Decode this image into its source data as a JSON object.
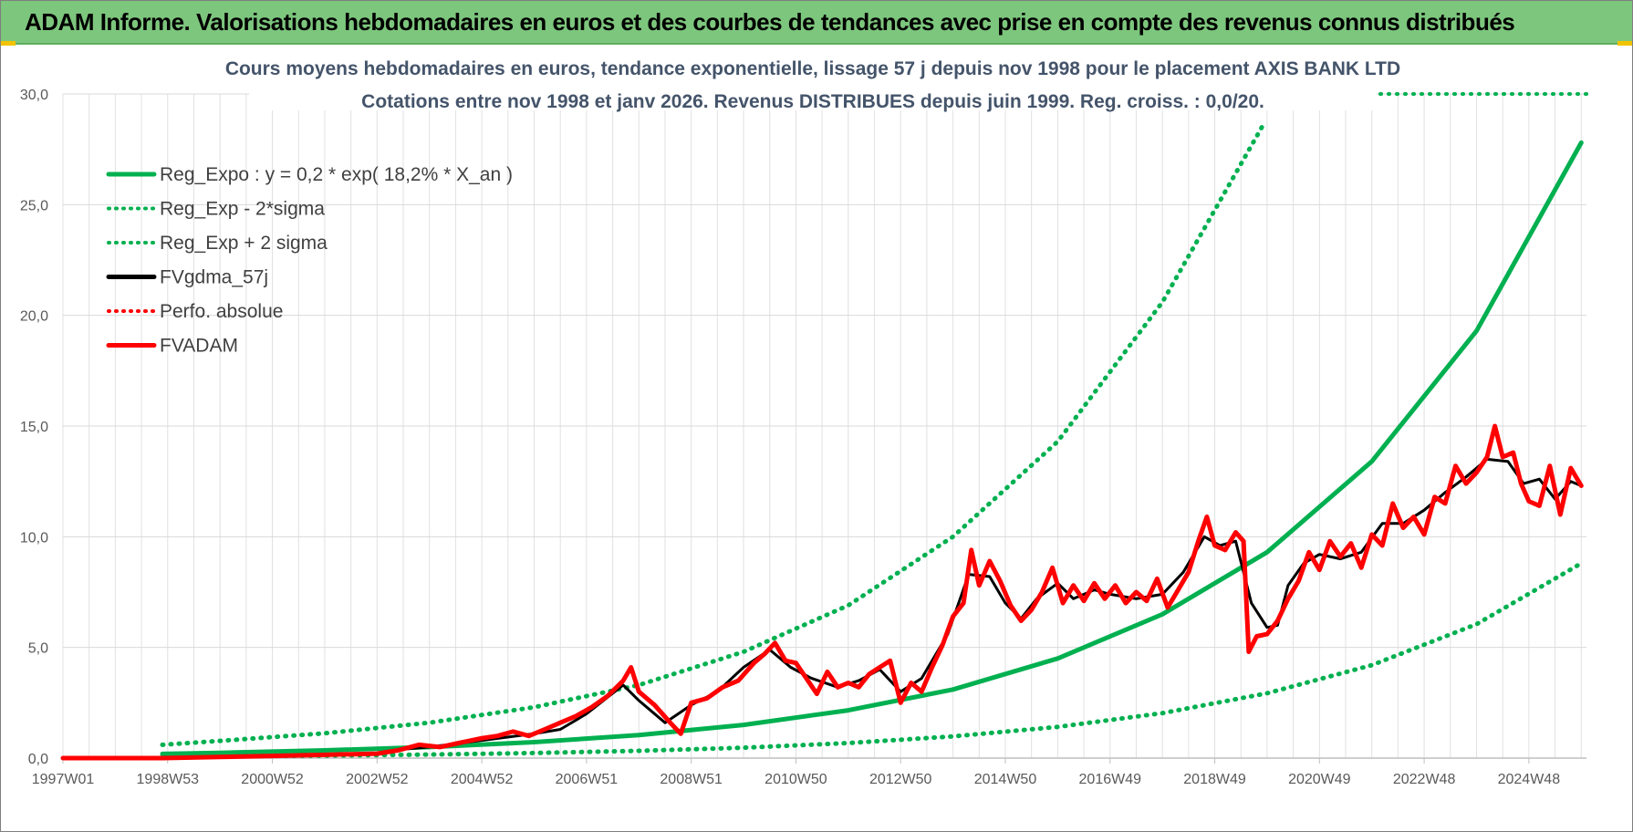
{
  "header": {
    "title": "ADAM Informe. Valorisations hebdomadaires en euros et des courbes de tendances avec prise en compte des revenus connus distribués"
  },
  "chart_data": {
    "type": "line",
    "title_line1": "Cours moyens hebdomadaires en euros, tendance exponentielle, lissage 57 j depuis nov 1998  pour le placement AXIS BANK LTD",
    "title_line2": "Cotations entre nov 1998 et janv 2026. Revenus DISTRIBUES depuis juin 1999. Reg.  croiss. : 0,0/20.",
    "xlabel": "",
    "ylabel": "",
    "xlim": [
      1997.0,
      2026.1
    ],
    "ylim": [
      0,
      30
    ],
    "y_ticks": [
      "0,0",
      "5,0",
      "10,0",
      "15,0",
      "20,0",
      "25,0",
      "30,0"
    ],
    "y_tick_values": [
      0,
      5,
      10,
      15,
      20,
      25,
      30
    ],
    "x_ticks": [
      "1997W01",
      "1998W53",
      "2000W52",
      "2002W52",
      "2004W52",
      "2006W51",
      "2008W51",
      "2010W50",
      "2012W50",
      "2014W50",
      "2016W49",
      "2018W49",
      "2020W49",
      "2022W48",
      "2024W48"
    ],
    "x_tick_values": [
      1997.0,
      1999.0,
      2001.0,
      2003.0,
      2005.0,
      2007.0,
      2009.0,
      2011.0,
      2013.0,
      2015.0,
      2017.0,
      2019.0,
      2021.0,
      2023.0,
      2025.0
    ],
    "legend_position": "top-left",
    "series": [
      {
        "name": "Reg_Expo : y = 0,2 * exp( 18,2% *  X_an )",
        "color": "#00b050",
        "style": "solid",
        "x": [
          1998.9,
          2000,
          2002,
          2004,
          2006,
          2008,
          2010,
          2012,
          2014,
          2016,
          2018,
          2020,
          2022,
          2024,
          2026
        ],
        "values": [
          0.19,
          0.24,
          0.35,
          0.5,
          0.72,
          1.04,
          1.5,
          2.16,
          3.1,
          4.5,
          6.5,
          9.3,
          13.4,
          19.3,
          27.8
        ]
      },
      {
        "name": "Reg_Exp - 2*sigma",
        "color": "#00b050",
        "style": "dotted",
        "x": [
          1998.9,
          2000,
          2002,
          2004,
          2006,
          2008,
          2010,
          2012,
          2014,
          2016,
          2018,
          2020,
          2022,
          2024,
          2026
        ],
        "values": [
          0.06,
          0.08,
          0.11,
          0.16,
          0.23,
          0.33,
          0.47,
          0.68,
          0.98,
          1.41,
          2.03,
          2.93,
          4.2,
          6.05,
          8.8
        ]
      },
      {
        "name": "Reg_Exp + 2 sigma",
        "color": "#00b050",
        "style": "dotted",
        "x": [
          1998.9,
          2000,
          2002,
          2004,
          2006,
          2008,
          2010,
          2012,
          2014,
          2016,
          2018,
          2019.9
        ],
        "values": [
          0.6,
          0.78,
          1.12,
          1.6,
          2.3,
          3.3,
          4.8,
          6.9,
          10.0,
          14.3,
          20.6,
          28.5
        ]
      },
      {
        "name": "FVgdma_57j",
        "color": "#000000",
        "style": "solid",
        "x": [
          1997.0,
          1998.9,
          2000.0,
          2001.0,
          2002.0,
          2003.0,
          2003.5,
          2004.0,
          2005.0,
          2006.0,
          2006.5,
          2007.0,
          2007.7,
          2008.0,
          2008.5,
          2009.0,
          2009.5,
          2010.0,
          2010.5,
          2010.9,
          2011.3,
          2011.8,
          2012.2,
          2012.6,
          2013.0,
          2013.4,
          2013.9,
          2014.3,
          2014.7,
          2015.0,
          2015.3,
          2015.6,
          2016.0,
          2016.3,
          2016.7,
          2017.0,
          2017.5,
          2018.0,
          2018.4,
          2018.8,
          2019.1,
          2019.4,
          2019.7,
          2020.0,
          2020.2,
          2020.4,
          2020.7,
          2021.0,
          2021.4,
          2021.8,
          2022.2,
          2022.6,
          2023.0,
          2023.4,
          2023.8,
          2024.2,
          2024.6,
          2024.9,
          2025.2,
          2025.5,
          2025.8,
          2026.0
        ],
        "values": [
          0.0,
          0.0,
          0.05,
          0.1,
          0.15,
          0.2,
          0.4,
          0.5,
          0.8,
          1.1,
          1.3,
          2.0,
          3.3,
          2.6,
          1.6,
          2.4,
          3.0,
          4.1,
          4.9,
          4.1,
          3.6,
          3.2,
          3.5,
          4.0,
          3.0,
          3.6,
          5.6,
          8.3,
          8.2,
          7.0,
          6.3,
          7.2,
          7.9,
          7.2,
          7.6,
          7.4,
          7.2,
          7.4,
          8.4,
          10.0,
          9.6,
          9.8,
          7.0,
          5.9,
          6.0,
          7.8,
          8.8,
          9.2,
          9.0,
          9.3,
          10.6,
          10.6,
          11.2,
          12.0,
          12.7,
          13.5,
          13.4,
          12.4,
          12.6,
          11.7,
          12.5,
          12.3
        ]
      },
      {
        "name": "Perfo. absolue",
        "color": "#ff0000",
        "style": "dotted",
        "x": [],
        "values": []
      },
      {
        "name": "FVADAM",
        "color": "#ff0000",
        "style": "solid",
        "x": [
          1997.0,
          1998.9,
          2000.0,
          2001.0,
          2002.0,
          2003.0,
          2003.4,
          2003.8,
          2004.2,
          2004.6,
          2005.0,
          2005.3,
          2005.6,
          2005.9,
          2006.2,
          2006.5,
          2006.8,
          2007.1,
          2007.4,
          2007.7,
          2007.85,
          2008.0,
          2008.3,
          2008.6,
          2008.8,
          2009.0,
          2009.3,
          2009.6,
          2009.9,
          2010.2,
          2010.4,
          2010.6,
          2010.8,
          2011.0,
          2011.2,
          2011.4,
          2011.6,
          2011.8,
          2012.0,
          2012.2,
          2012.4,
          2012.6,
          2012.8,
          2013.0,
          2013.2,
          2013.4,
          2013.6,
          2013.8,
          2014.0,
          2014.2,
          2014.35,
          2014.5,
          2014.7,
          2014.9,
          2015.1,
          2015.3,
          2015.5,
          2015.7,
          2015.9,
          2016.1,
          2016.3,
          2016.5,
          2016.7,
          2016.9,
          2017.1,
          2017.3,
          2017.5,
          2017.7,
          2017.9,
          2018.1,
          2018.3,
          2018.5,
          2018.7,
          2018.85,
          2019.0,
          2019.2,
          2019.4,
          2019.55,
          2019.65,
          2019.8,
          2020.0,
          2020.2,
          2020.4,
          2020.6,
          2020.8,
          2021.0,
          2021.2,
          2021.4,
          2021.6,
          2021.8,
          2022.0,
          2022.2,
          2022.4,
          2022.6,
          2022.8,
          2023.0,
          2023.2,
          2023.4,
          2023.6,
          2023.8,
          2024.0,
          2024.2,
          2024.35,
          2024.5,
          2024.7,
          2024.85,
          2025.0,
          2025.2,
          2025.4,
          2025.6,
          2025.8,
          2026.0
        ],
        "values": [
          0.0,
          0.0,
          0.05,
          0.1,
          0.15,
          0.2,
          0.35,
          0.6,
          0.5,
          0.7,
          0.9,
          1.0,
          1.2,
          1.0,
          1.3,
          1.6,
          1.9,
          2.3,
          2.8,
          3.5,
          4.1,
          3.0,
          2.4,
          1.6,
          1.1,
          2.5,
          2.7,
          3.2,
          3.5,
          4.3,
          4.7,
          5.2,
          4.4,
          4.3,
          3.6,
          2.9,
          3.9,
          3.2,
          3.4,
          3.2,
          3.8,
          4.1,
          4.4,
          2.5,
          3.4,
          3.0,
          4.1,
          5.1,
          6.4,
          7.0,
          9.4,
          7.8,
          8.9,
          8.0,
          6.9,
          6.2,
          6.7,
          7.5,
          8.6,
          7.0,
          7.8,
          7.1,
          7.9,
          7.2,
          7.8,
          7.0,
          7.5,
          7.1,
          8.1,
          6.8,
          7.6,
          8.4,
          9.9,
          10.9,
          9.6,
          9.4,
          10.2,
          9.8,
          4.8,
          5.5,
          5.6,
          6.2,
          7.2,
          8.0,
          9.3,
          8.5,
          9.8,
          9.1,
          9.7,
          8.6,
          10.1,
          9.6,
          11.5,
          10.4,
          10.9,
          10.1,
          11.8,
          11.5,
          13.2,
          12.4,
          12.9,
          13.6,
          15.0,
          13.6,
          13.8,
          12.4,
          11.6,
          11.4,
          13.2,
          11.0,
          13.1,
          12.3
        ]
      }
    ]
  }
}
